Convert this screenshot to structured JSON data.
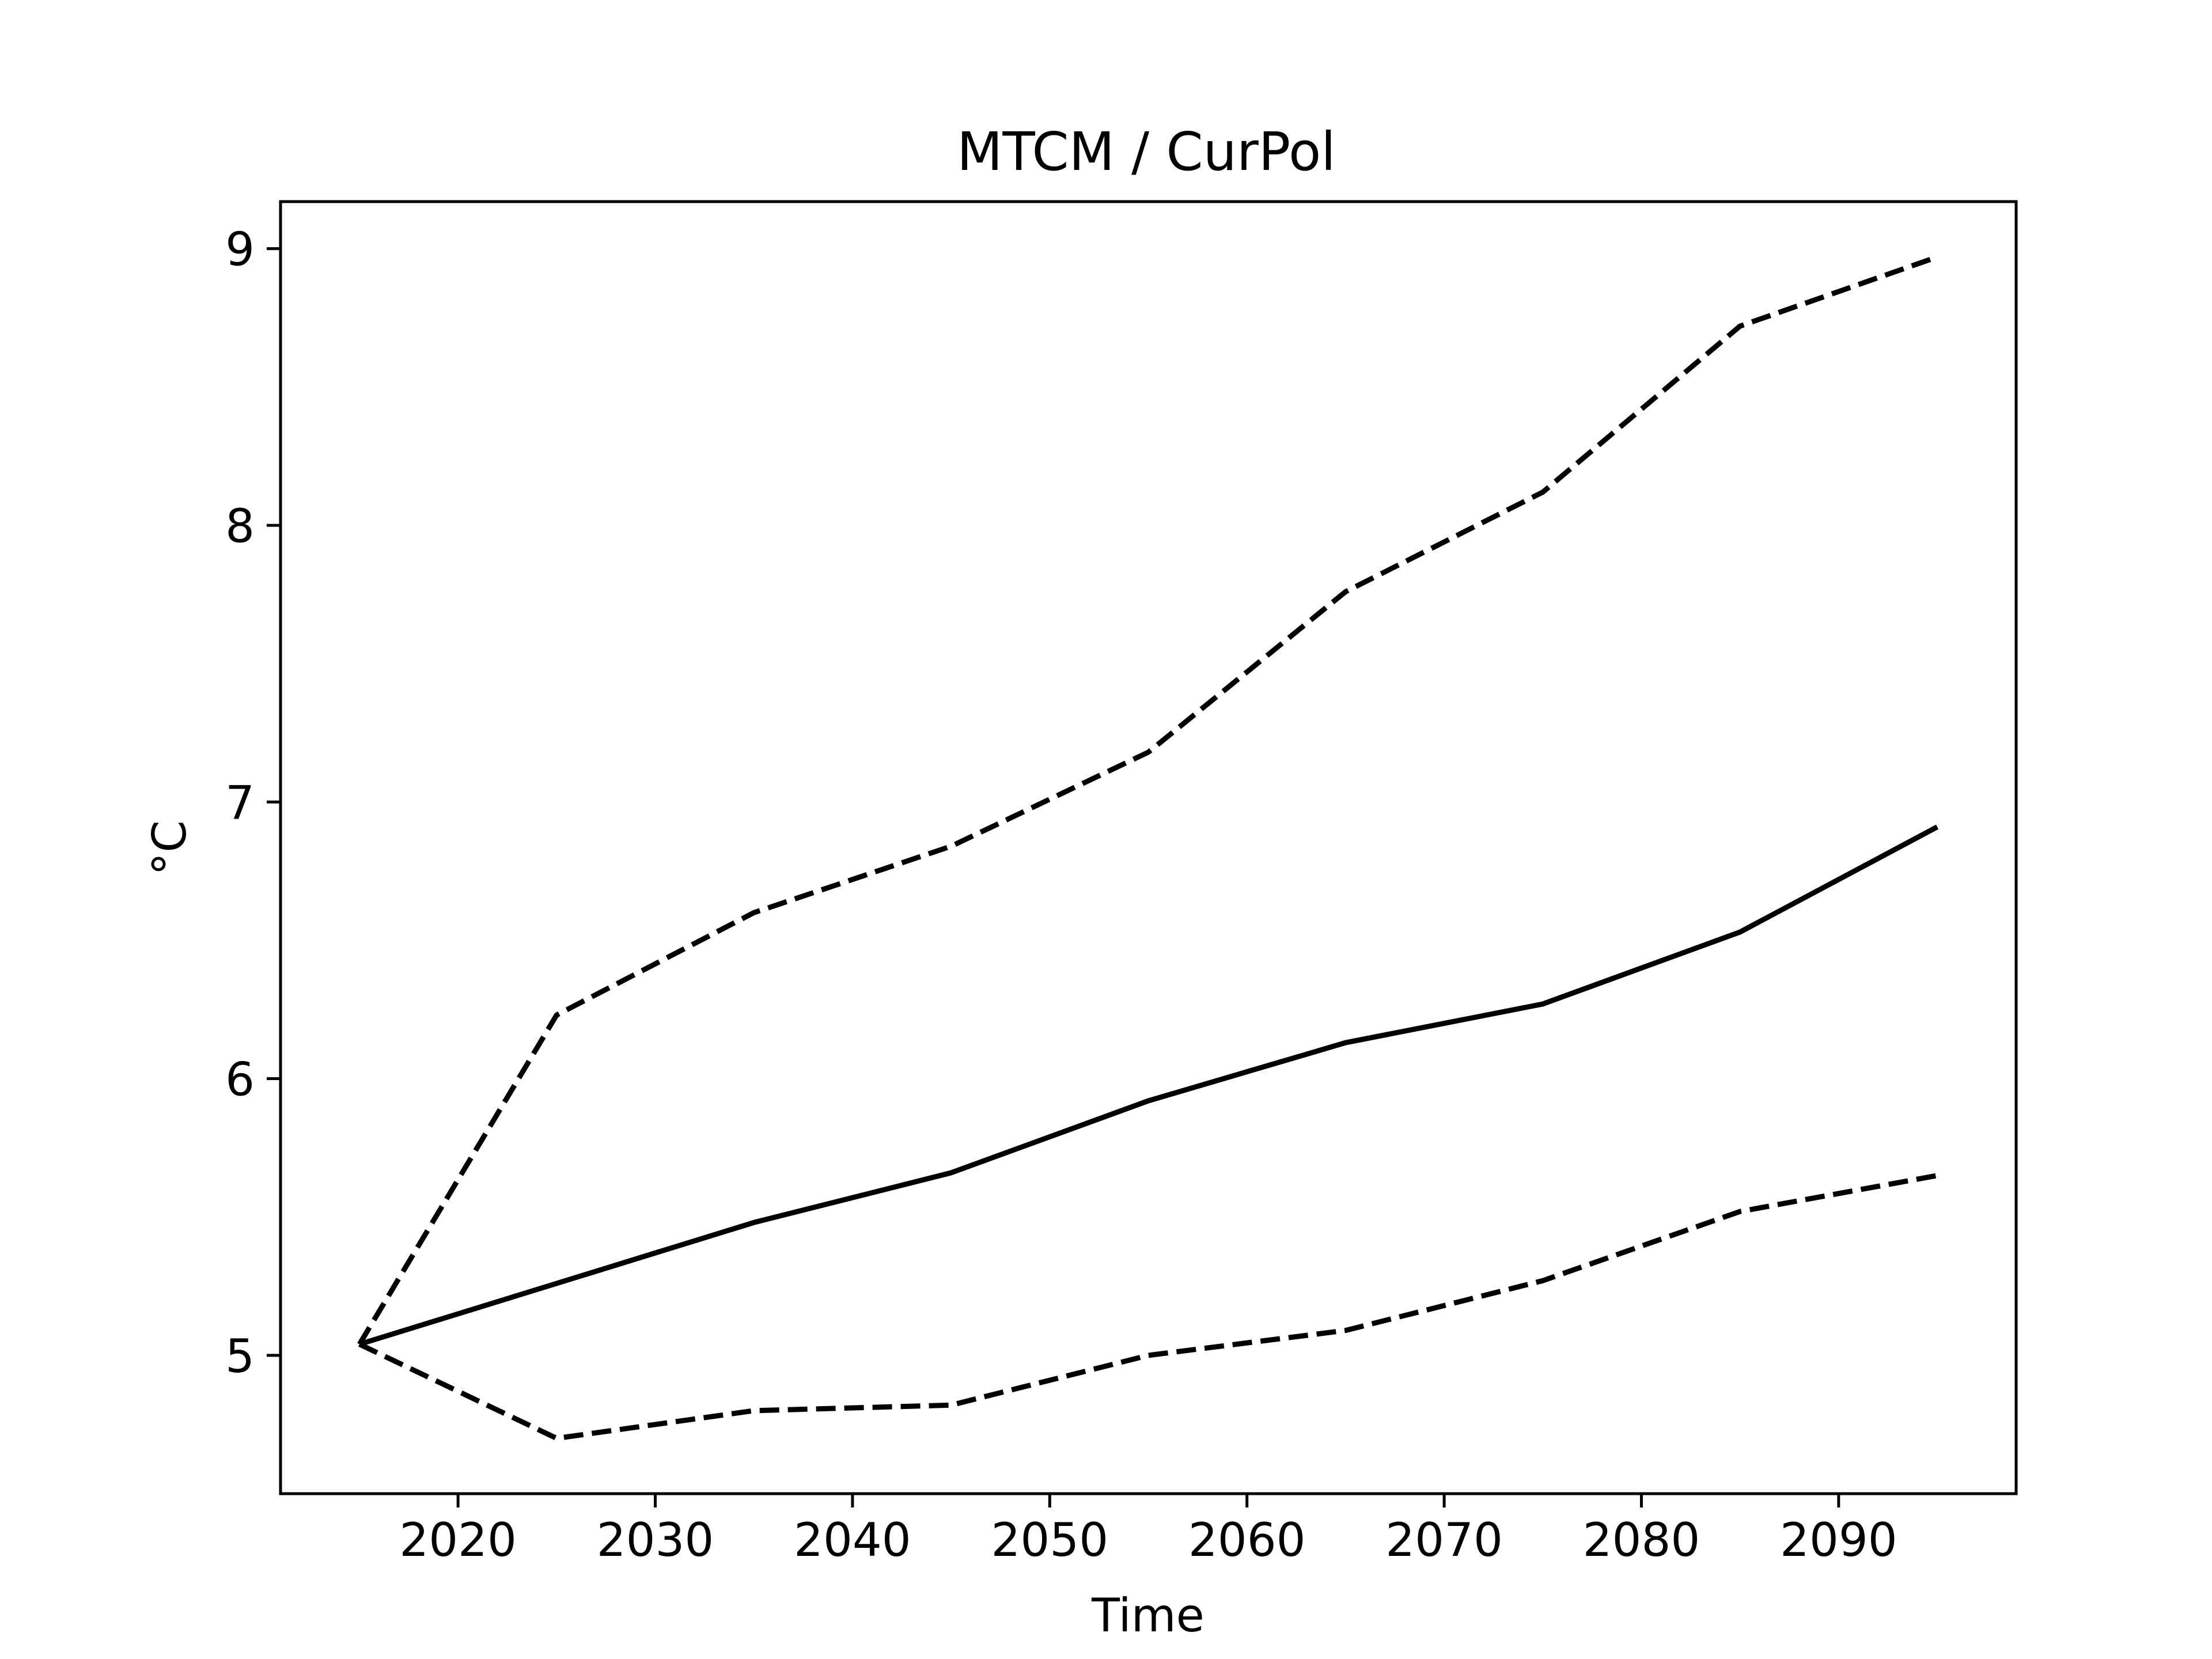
{
  "chart_data": {
    "type": "line",
    "title": "MTCM / CurPol",
    "xlabel": "Time",
    "ylabel": "°C",
    "xlim": [
      2011,
      2099
    ],
    "ylim": [
      4.5,
      9.17
    ],
    "xticks": [
      2020,
      2030,
      2040,
      2050,
      2060,
      2070,
      2080,
      2090
    ],
    "yticks": [
      5,
      6,
      7,
      8,
      9
    ],
    "grid": false,
    "legend": "none",
    "x": [
      2015,
      2025,
      2035,
      2045,
      2055,
      2065,
      2075,
      2085,
      2095
    ],
    "series": [
      {
        "style": "solid",
        "color": "#000000",
        "values": [
          5.04,
          5.26,
          5.48,
          5.66,
          5.92,
          6.13,
          6.27,
          6.53,
          6.91
        ]
      },
      {
        "style": "dashed",
        "color": "#000000",
        "values": [
          5.04,
          6.23,
          6.6,
          6.84,
          7.18,
          7.76,
          8.12,
          8.72,
          8.97
        ]
      },
      {
        "style": "dashed",
        "color": "#000000",
        "values": [
          5.04,
          4.7,
          4.8,
          4.82,
          5.0,
          5.09,
          5.27,
          5.52,
          5.65
        ]
      }
    ]
  }
}
